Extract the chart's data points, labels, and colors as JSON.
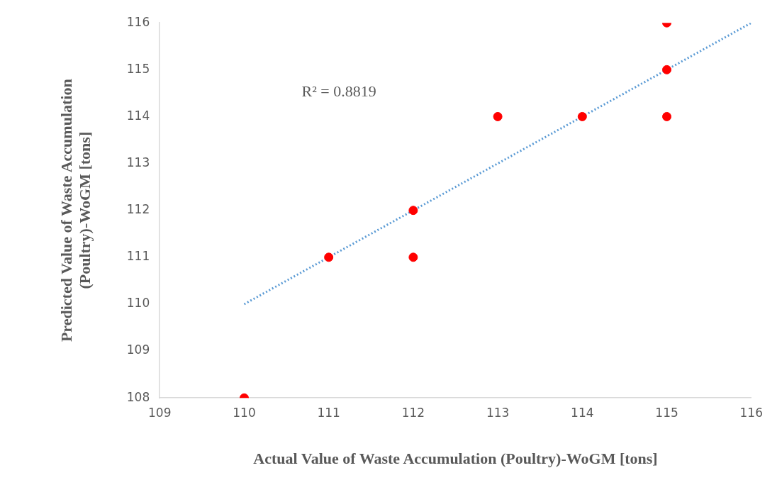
{
  "chart_data": {
    "type": "scatter",
    "xlabel": "Actual Value of Waste Accumulation (Poultry)-WoGM [tons]",
    "ylabel": "Predicted Value of Waste Accumulation (Poultry)-WoGM [tons]",
    "annotations": [
      "R² = 0.8819"
    ],
    "xlim": [
      109,
      116
    ],
    "xticks": [
      109,
      110,
      111,
      112,
      113,
      114,
      115,
      116
    ],
    "ylim": [
      108,
      116
    ],
    "yticks": [
      108,
      109,
      110,
      111,
      112,
      113,
      114,
      115,
      116
    ],
    "grid": false,
    "legend": false,
    "marker": "circle",
    "series": [
      {
        "color": "#ff0000",
        "x": [
          110,
          111,
          112,
          112,
          113,
          114,
          115,
          115,
          115
        ],
        "values": [
          108,
          111,
          112,
          111,
          114,
          114,
          116,
          115,
          114
        ]
      },
      {
        "type": "line",
        "color": "#5b9bd5",
        "line_style": "dotted",
        "marker": "none",
        "x": [
          110,
          116
        ],
        "values": [
          110,
          116
        ]
      }
    ]
  }
}
